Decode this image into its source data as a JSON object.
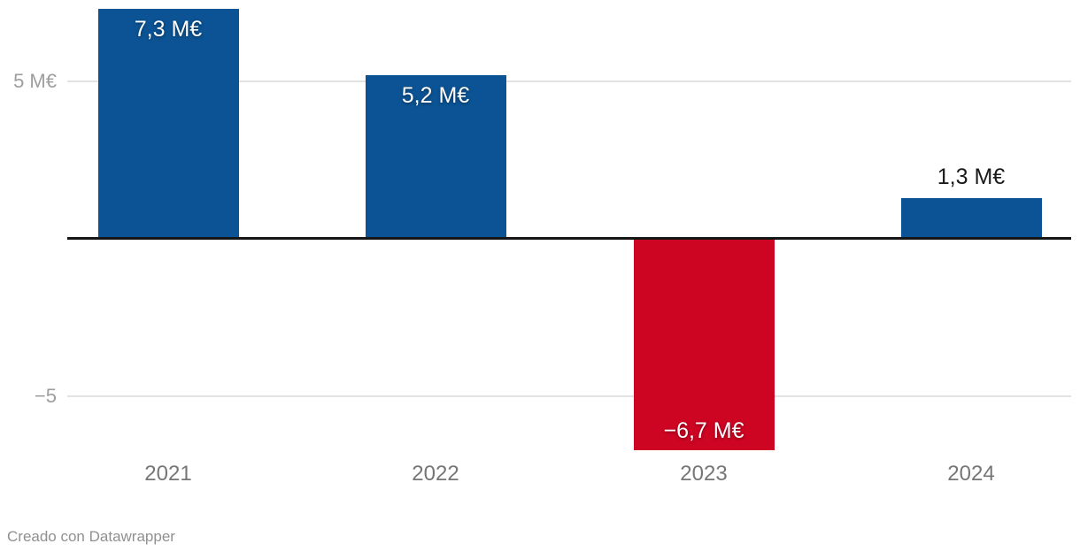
{
  "chart_data": {
    "type": "bar",
    "title": "",
    "xlabel": "",
    "ylabel": "",
    "categories": [
      "2021",
      "2022",
      "2023",
      "2024"
    ],
    "values": [
      7.3,
      5.2,
      -6.7,
      1.3
    ],
    "value_labels": [
      "7,3 M€",
      "5,2 M€",
      "−6,7 M€",
      "1,3 M€"
    ],
    "unit": "M€",
    "y_ticks": [
      {
        "value": 5,
        "label": "5 M€"
      },
      {
        "value": -5,
        "label": "−5"
      }
    ],
    "ylim": [
      -7,
      7.6
    ],
    "grid": true,
    "legend_position": "none",
    "positive_color": "#0b5394",
    "negative_color": "#ce0423",
    "baseline_color": "#161616",
    "gridline_color": "#e2e2e2"
  },
  "footer": {
    "attribution": "Creado con Datawrapper"
  }
}
